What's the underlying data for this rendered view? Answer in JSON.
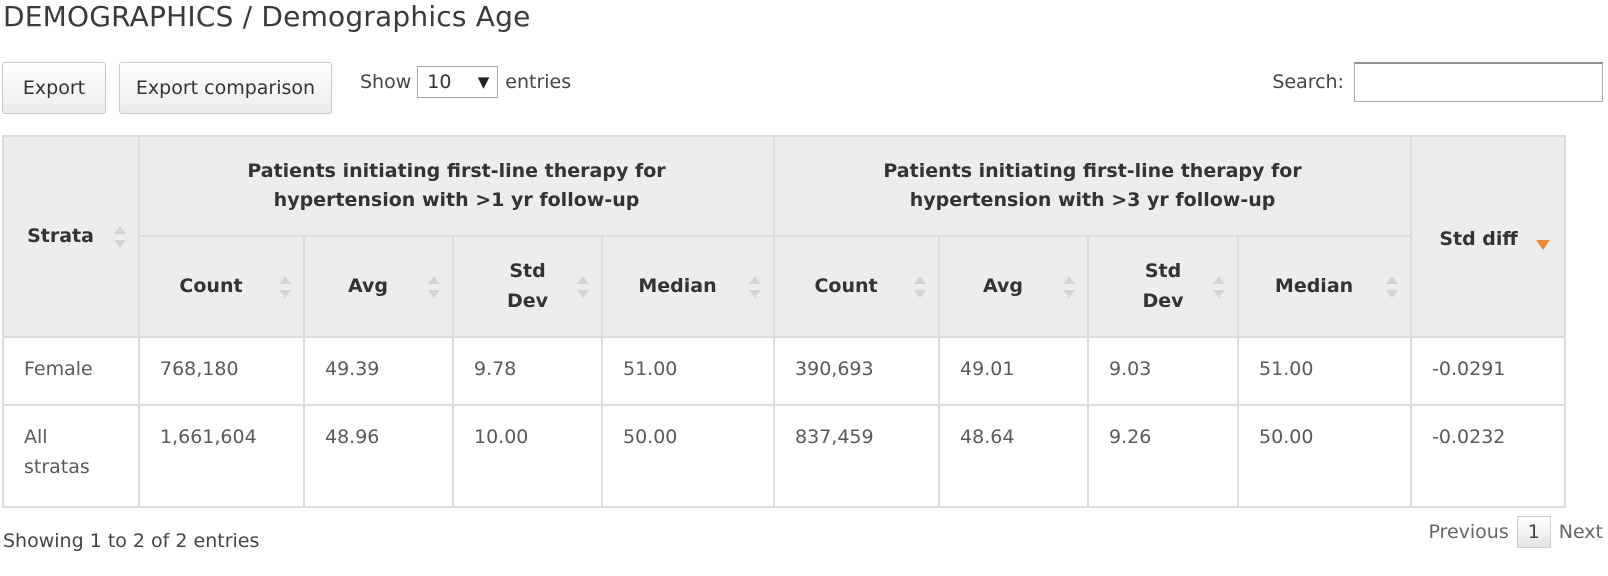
{
  "title": "DEMOGRAPHICS / Demographics Age",
  "toolbar": {
    "export_label": "Export",
    "export_comparison_label": "Export comparison",
    "show_label": "Show",
    "entries_label": "entries",
    "page_length": "10",
    "search_label": "Search:",
    "search_value": ""
  },
  "table": {
    "strata_header": "Strata",
    "group1_header": "Patients initiating first-line therapy for hypertension with >1 yr follow-up",
    "group2_header": "Patients initiating first-line therapy for hypertension with >3 yr follow-up",
    "std_diff_header": "Std diff",
    "sub_headers": [
      "Count",
      "Avg",
      "Std Dev",
      "Median"
    ],
    "rows": [
      {
        "strata": "Female",
        "g1": [
          "768,180",
          "49.39",
          "9.78",
          "51.00"
        ],
        "g2": [
          "390,693",
          "49.01",
          "9.03",
          "51.00"
        ],
        "std_diff": "-0.0291"
      },
      {
        "strata": "All stratas",
        "g1": [
          "1,661,604",
          "48.96",
          "10.00",
          "50.00"
        ],
        "g2": [
          "837,459",
          "48.64",
          "9.26",
          "50.00"
        ],
        "std_diff": "-0.0232"
      }
    ]
  },
  "footer": {
    "info": "Showing 1 to 2 of 2 entries",
    "previous_label": "Previous",
    "current_page": "1",
    "next_label": "Next"
  },
  "colors": {
    "header_bg": "#ededed",
    "border": "#dddddd",
    "sort_active": "#f0883a"
  }
}
